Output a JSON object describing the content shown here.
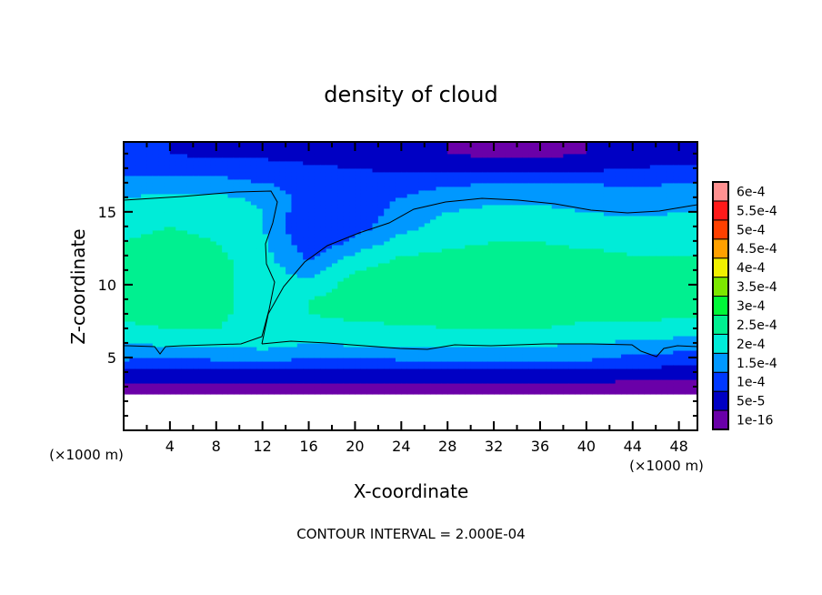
{
  "chart_data": {
    "type": "heatmap",
    "title": "density of cloud",
    "xlabel": "X-coordinate",
    "ylabel": "Z-coordinate",
    "x_unit_label": "(×1000 m)",
    "y_unit_label": "(×1000 m)",
    "footer": "CONTOUR INTERVAL = 2.000E-04",
    "xlim": [
      0,
      49.6
    ],
    "ylim": [
      0,
      19.8
    ],
    "x_ticks": [
      4,
      8,
      12,
      16,
      20,
      24,
      28,
      32,
      36,
      40,
      44,
      48
    ],
    "x_tick_labels": [
      "4",
      "8",
      "12",
      "16",
      "20",
      "24",
      "28",
      "32",
      "36",
      "40",
      "44",
      "48"
    ],
    "y_ticks": [
      5,
      10,
      15
    ],
    "y_tick_labels": [
      "5",
      "10",
      "15"
    ],
    "contour_level": 0.0002,
    "value_scale": 0.0001,
    "colorbar": {
      "levels": [
        0,
        0.5,
        1.0,
        1.5,
        2.0,
        2.5,
        3.0,
        3.5,
        4.0,
        4.5,
        5.0,
        5.5,
        6.0
      ],
      "labels": [
        "1e-16",
        "5e-5",
        "1e-4",
        "1.5e-4",
        "2e-4",
        "2.5e-4",
        "3e-4",
        "3.5e-4",
        "4e-4",
        "4.5e-4",
        "5e-4",
        "5.5e-4",
        "6e-4"
      ],
      "colors": [
        "#6a00a8",
        "#0000c4",
        "#0038ff",
        "#0098ff",
        "#00ecd8",
        "#00f090",
        "#00f838",
        "#7ce800",
        "#f0f000",
        "#ffa000",
        "#ff4000",
        "#ff1a1a",
        "#ff9090"
      ]
    },
    "grid_x": [
      0,
      4,
      8,
      12,
      16,
      20,
      24,
      28,
      32,
      36,
      40,
      44,
      48
    ],
    "grid_z": [
      0,
      1,
      2,
      3,
      4,
      5,
      6,
      7,
      8,
      9,
      10,
      11,
      12,
      13,
      14,
      15,
      16,
      17,
      18,
      19
    ],
    "values": [
      [
        null,
        null,
        null,
        null,
        null,
        null,
        null,
        null,
        null,
        null,
        null,
        null,
        null
      ],
      [
        null,
        null,
        null,
        null,
        null,
        null,
        null,
        null,
        null,
        null,
        null,
        null,
        null
      ],
      [
        null,
        null,
        null,
        null,
        null,
        null,
        null,
        null,
        null,
        null,
        null,
        null,
        null
      ],
      [
        0.3,
        0.3,
        0.3,
        0.3,
        0.3,
        0.3,
        0.3,
        0.3,
        0.3,
        0.3,
        0.3,
        0.3,
        0.3
      ],
      [
        0.9,
        0.9,
        0.9,
        0.9,
        0.9,
        0.9,
        0.9,
        0.9,
        0.9,
        0.9,
        0.9,
        0.8,
        0.8
      ],
      [
        1.6,
        1.5,
        1.6,
        1.7,
        1.5,
        1.5,
        1.6,
        1.6,
        1.6,
        1.6,
        1.6,
        1.4,
        1.3
      ],
      [
        2.0,
        2.1,
        2.1,
        2.2,
        2.0,
        2.1,
        2.1,
        2.1,
        2.1,
        2.1,
        2.0,
        1.9,
        1.8
      ],
      [
        2.4,
        2.5,
        2.5,
        2.2,
        2.3,
        2.4,
        2.4,
        2.5,
        2.5,
        2.5,
        2.4,
        2.4,
        2.3
      ],
      [
        2.6,
        2.7,
        2.7,
        2.1,
        2.5,
        2.6,
        2.7,
        2.7,
        2.7,
        2.7,
        2.6,
        2.6,
        2.6
      ],
      [
        2.7,
        2.9,
        2.8,
        2.0,
        2.5,
        2.7,
        2.8,
        2.9,
        2.9,
        2.9,
        2.8,
        2.7,
        2.7
      ],
      [
        2.7,
        2.9,
        2.8,
        2.1,
        2.2,
        2.7,
        2.8,
        2.9,
        3.0,
        2.9,
        2.8,
        2.7,
        2.7
      ],
      [
        2.7,
        2.8,
        2.7,
        2.2,
        1.8,
        2.5,
        2.7,
        2.8,
        2.8,
        2.8,
        2.7,
        2.7,
        2.6
      ],
      [
        2.6,
        2.7,
        2.6,
        2.2,
        1.4,
        2.1,
        2.5,
        2.6,
        2.6,
        2.6,
        2.6,
        2.5,
        2.5
      ],
      [
        2.5,
        2.6,
        2.5,
        2.1,
        1.1,
        1.6,
        2.2,
        2.4,
        2.5,
        2.5,
        2.4,
        2.4,
        2.4
      ],
      [
        2.4,
        2.5,
        2.4,
        2.0,
        1.0,
        1.3,
        1.8,
        2.2,
        2.3,
        2.3,
        2.3,
        2.2,
        2.2
      ],
      [
        2.3,
        2.4,
        2.3,
        2.0,
        1.1,
        1.3,
        1.6,
        2.0,
        2.1,
        2.1,
        2.0,
        1.9,
        2.0
      ],
      [
        2.0,
        2.1,
        2.1,
        1.9,
        1.3,
        1.4,
        1.5,
        1.8,
        1.9,
        1.9,
        1.8,
        1.7,
        1.8
      ],
      [
        1.7,
        1.7,
        1.7,
        1.5,
        1.3,
        1.3,
        1.3,
        1.4,
        1.5,
        1.5,
        1.5,
        1.4,
        1.5
      ],
      [
        1.3,
        1.3,
        1.3,
        1.2,
        1.1,
        1.0,
        0.9,
        0.9,
        0.8,
        0.8,
        0.9,
        1.0,
        1.1
      ],
      [
        1.0,
        1.0,
        0.9,
        0.9,
        0.8,
        0.7,
        0.6,
        0.5,
        0.4,
        0.4,
        0.5,
        0.7,
        0.8
      ]
    ]
  }
}
